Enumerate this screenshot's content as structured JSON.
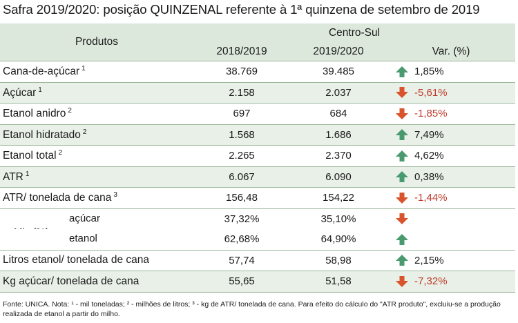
{
  "title": "Safra 2019/2020: posição QUINZENAL referente à 1ª quinzena de setembro de 2019",
  "header": {
    "produtos": "Produtos",
    "group": "Centro-Sul",
    "col1": "2018/2019",
    "col2": "2019/2020",
    "col3": "Var. (%)"
  },
  "rows": [
    {
      "label": "Cana-de-açúcar",
      "sup": "1",
      "v1": "38.769",
      "v2": "39.485",
      "var": "1,85%",
      "dir": "up"
    },
    {
      "label": "Açúcar",
      "sup": "1",
      "v1": "2.158",
      "v2": "2.037",
      "var": "-5,61%",
      "dir": "down"
    },
    {
      "label": "Etanol anidro",
      "sup": "2",
      "v1": "697",
      "v2": "684",
      "var": "-1,85%",
      "dir": "down"
    },
    {
      "label": "Etanol hidratado",
      "sup": "2",
      "v1": "1.568",
      "v2": "1.686",
      "var": "7,49%",
      "dir": "up"
    },
    {
      "label": "Etanol total",
      "sup": "2",
      "v1": "2.265",
      "v2": "2.370",
      "var": "4,62%",
      "dir": "up"
    },
    {
      "label": "ATR",
      "sup": "1",
      "v1": "6.067",
      "v2": "6.090",
      "var": "0,38%",
      "dir": "up"
    },
    {
      "label": "ATR/ tonelada de cana",
      "sup": "3",
      "v1": "156,48",
      "v2": "154,22",
      "var": "-1,44%",
      "dir": "down"
    }
  ],
  "mix": {
    "label": "Mix (%)",
    "acucar": {
      "label": "açúcar",
      "v1": "37,32%",
      "v2": "35,10%",
      "dir": "down"
    },
    "etanol": {
      "label": "etanol",
      "v1": "62,68%",
      "v2": "64,90%",
      "dir": "up"
    }
  },
  "rows2": [
    {
      "label": "Litros etanol/ tonelada de cana",
      "v1": "57,74",
      "v2": "58,98",
      "var": "2,15%",
      "dir": "up"
    },
    {
      "label": "Kg açúcar/ tonelada de cana",
      "v1": "55,65",
      "v2": "51,58",
      "var": "-7,32%",
      "dir": "down"
    }
  ],
  "footnote": "Fonte: UNICA. Nota: ¹ - mil toneladas; ² - milhões de litros; ³ - kg de ATR/ tonelada de cana. Para efeito do cálculo do \"ATR produto\", excluiu-se a produção realizada de etanol a partir do milho.",
  "colors": {
    "up": "#4a9a6f",
    "down": "#d9532c",
    "negative_text": "#c0392b",
    "header_bg": "#dde8dc",
    "alt_bg": "#e8f0e7"
  }
}
